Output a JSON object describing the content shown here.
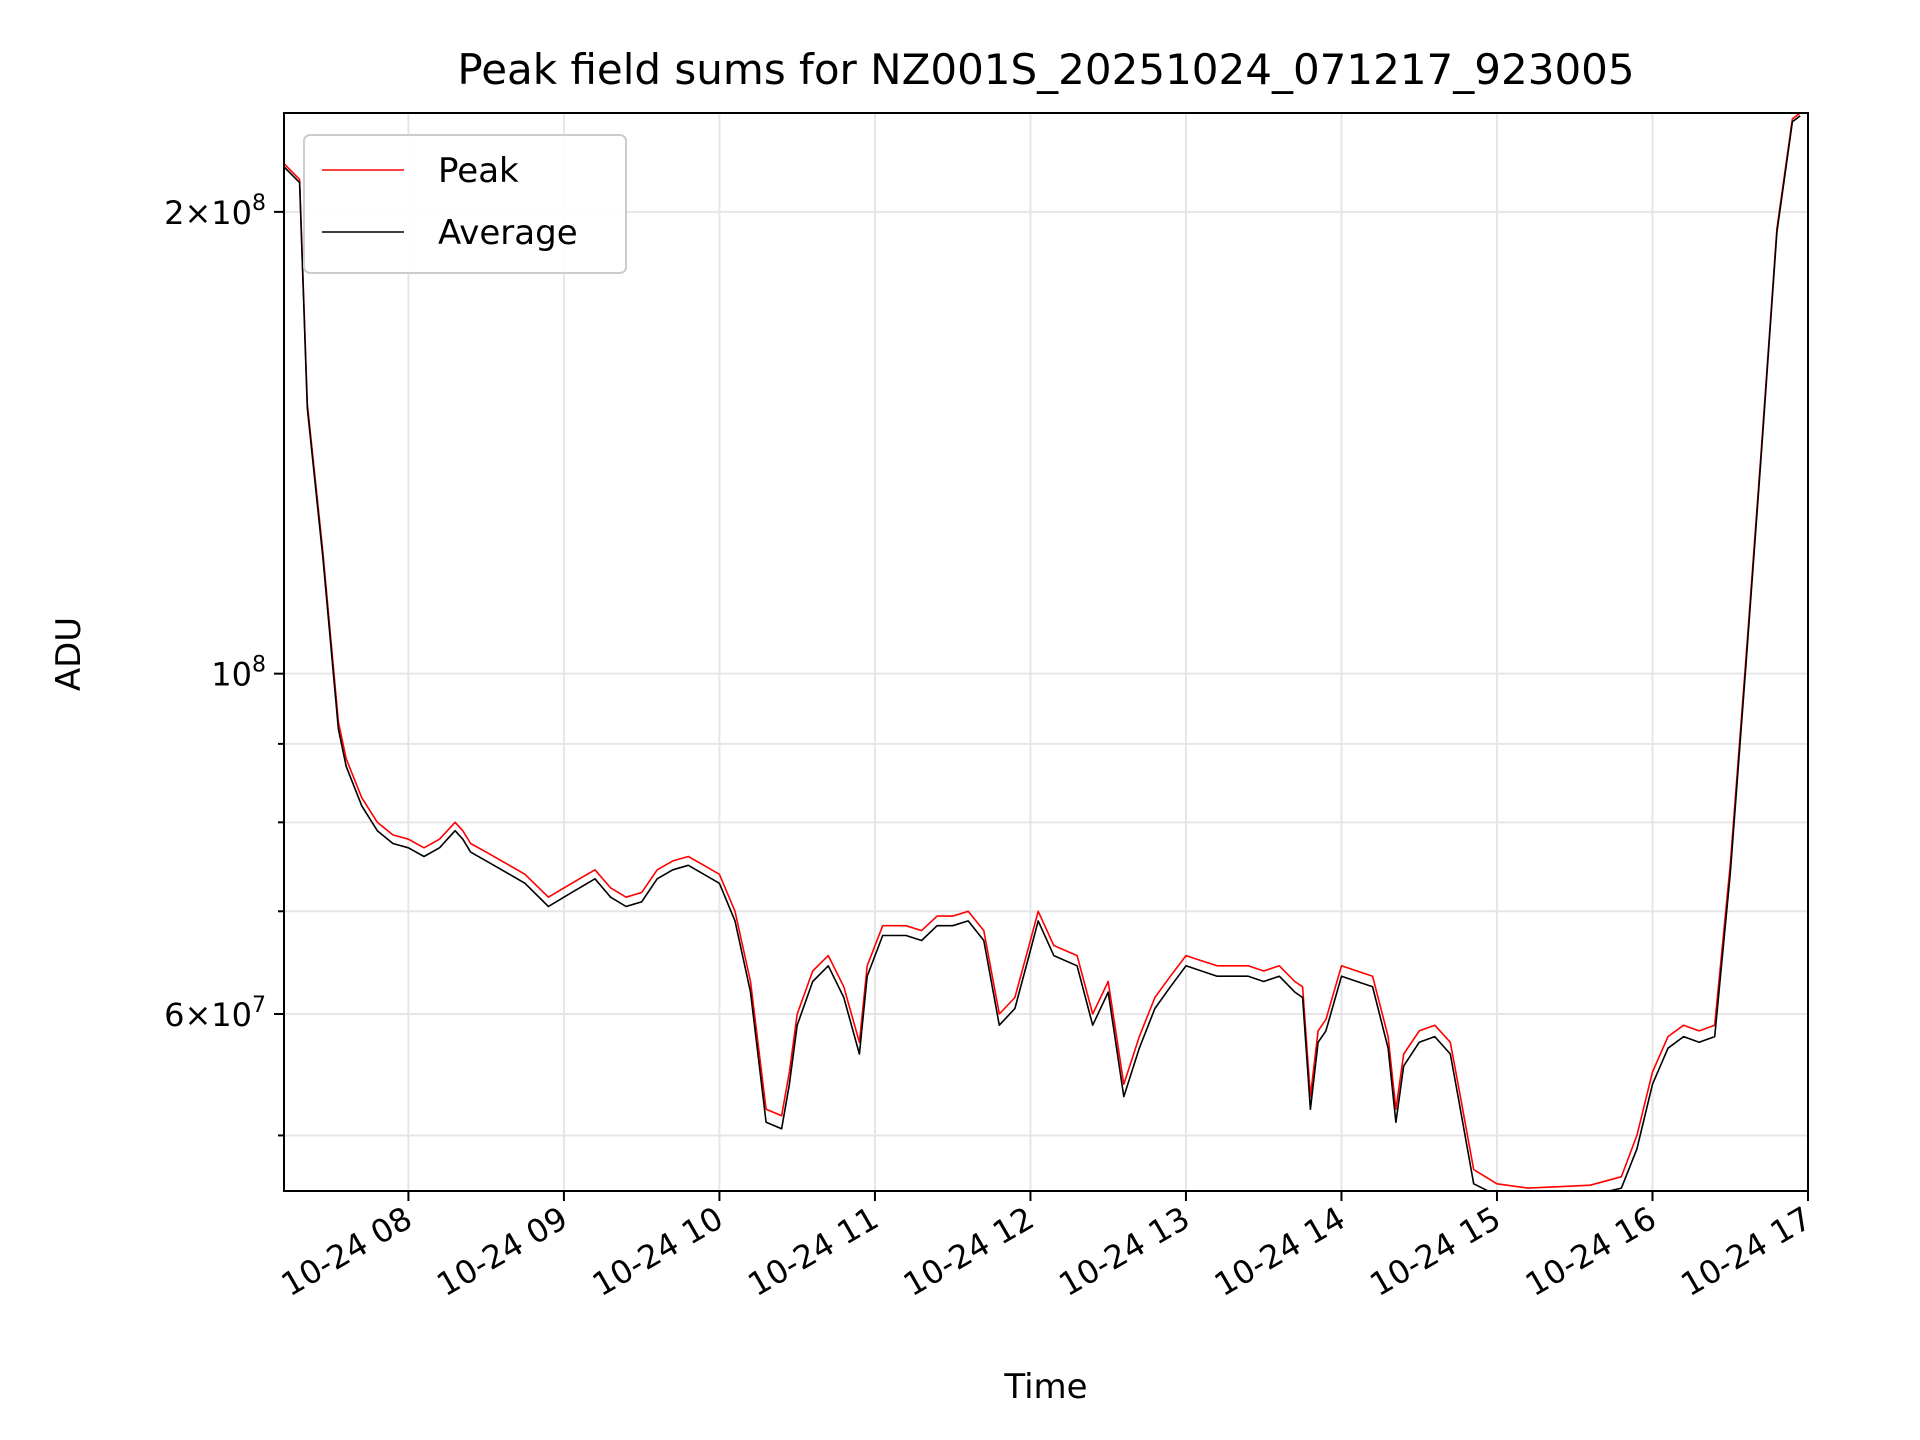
{
  "chart_data": {
    "type": "line",
    "title": "Peak field sums for NZ001S_20251024_071217_923005",
    "xlabel": "Time",
    "ylabel": "ADU",
    "x_unit": "hours of day 2025-10-24",
    "xlim": [
      7.2,
      17.0
    ],
    "ylim": [
      46000000,
      232000000
    ],
    "y_scale": "log",
    "grid": true,
    "legend_position": "upper-left",
    "x_ticks": [
      {
        "value": 8,
        "label": "10-24 08"
      },
      {
        "value": 9,
        "label": "10-24 09"
      },
      {
        "value": 10,
        "label": "10-24 10"
      },
      {
        "value": 11,
        "label": "10-24 11"
      },
      {
        "value": 12,
        "label": "10-24 12"
      },
      {
        "value": 13,
        "label": "10-24 13"
      },
      {
        "value": 14,
        "label": "10-24 14"
      },
      {
        "value": 15,
        "label": "10-24 15"
      },
      {
        "value": 16,
        "label": "10-24 16"
      },
      {
        "value": 17,
        "label": "10-24 17"
      }
    ],
    "y_ticks": [
      {
        "value": 60000000,
        "mantissa": "6",
        "exp": "7"
      },
      {
        "value": 100000000,
        "mantissa": "",
        "exp": "8"
      },
      {
        "value": 200000000,
        "mantissa": "2",
        "exp": "8"
      }
    ],
    "y_minor_ticks": [
      50000000,
      70000000,
      80000000,
      90000000
    ],
    "x": [
      7.2,
      7.3,
      7.35,
      7.45,
      7.55,
      7.6,
      7.7,
      7.8,
      7.9,
      8.0,
      8.1,
      8.2,
      8.3,
      8.35,
      8.4,
      8.5,
      8.6,
      8.75,
      8.9,
      9.0,
      9.1,
      9.2,
      9.3,
      9.4,
      9.5,
      9.6,
      9.7,
      9.8,
      9.9,
      10.0,
      10.1,
      10.2,
      10.3,
      10.4,
      10.45,
      10.5,
      10.6,
      10.7,
      10.8,
      10.9,
      10.95,
      11.05,
      11.2,
      11.3,
      11.4,
      11.5,
      11.6,
      11.7,
      11.8,
      11.9,
      12.0,
      12.05,
      12.15,
      12.3,
      12.4,
      12.5,
      12.6,
      12.7,
      12.8,
      12.9,
      13.0,
      13.1,
      13.2,
      13.3,
      13.4,
      13.5,
      13.6,
      13.7,
      13.75,
      13.8,
      13.85,
      13.9,
      14.0,
      14.1,
      14.2,
      14.3,
      14.35,
      14.4,
      14.5,
      14.6,
      14.7,
      14.75,
      14.85,
      15.0,
      15.2,
      15.4,
      15.6,
      15.8,
      15.9,
      16.0,
      16.1,
      16.2,
      16.3,
      16.4,
      16.5,
      16.6,
      16.7,
      16.8,
      16.9,
      16.95
    ],
    "series": [
      {
        "name": "Peak",
        "color": "#ff0000",
        "values": [
          215000000,
          210000000,
          150000000,
          120000000,
          93000000,
          88000000,
          83000000,
          80000000,
          78500000,
          78000000,
          77000000,
          78000000,
          80000000,
          79000000,
          77500000,
          76500000,
          75500000,
          74000000,
          71500000,
          72500000,
          73500000,
          74500000,
          72500000,
          71500000,
          72000000,
          74500000,
          75500000,
          76000000,
          75000000,
          74000000,
          70000000,
          63000000,
          52000000,
          51500000,
          55000000,
          60000000,
          64000000,
          65500000,
          62500000,
          57500000,
          64500000,
          68500000,
          68500000,
          68000000,
          69500000,
          69500000,
          70000000,
          68000000,
          60000000,
          61500000,
          67000000,
          70000000,
          66500000,
          65500000,
          60000000,
          63000000,
          54000000,
          58000000,
          61500000,
          63500000,
          65500000,
          65000000,
          64500000,
          64500000,
          64500000,
          64000000,
          64500000,
          63000000,
          62500000,
          53000000,
          58500000,
          59500000,
          64500000,
          64000000,
          63500000,
          58000000,
          52000000,
          56500000,
          58500000,
          59000000,
          57500000,
          54000000,
          47500000,
          46500000,
          46200000,
          46300000,
          46400000,
          47000000,
          50000000,
          55000000,
          58000000,
          59000000,
          58500000,
          59000000,
          75000000,
          102000000,
          140000000,
          195000000,
          230000000,
          232000000
        ]
      },
      {
        "name": "Average",
        "color": "#000000",
        "values": [
          214000000,
          209000000,
          149000000,
          119000000,
          92000000,
          87000000,
          82000000,
          79000000,
          77500000,
          77000000,
          76000000,
          77000000,
          79000000,
          78000000,
          76500000,
          75500000,
          74500000,
          73000000,
          70500000,
          71500000,
          72500000,
          73500000,
          71500000,
          70500000,
          71000000,
          73500000,
          74500000,
          75000000,
          74000000,
          73000000,
          69000000,
          62000000,
          51000000,
          50500000,
          54000000,
          59000000,
          63000000,
          64500000,
          61500000,
          56500000,
          63500000,
          67500000,
          67500000,
          67000000,
          68500000,
          68500000,
          69000000,
          67000000,
          59000000,
          60500000,
          66000000,
          69000000,
          65500000,
          64500000,
          59000000,
          62000000,
          53000000,
          57000000,
          60500000,
          62500000,
          64500000,
          64000000,
          63500000,
          63500000,
          63500000,
          63000000,
          63500000,
          62000000,
          61500000,
          52000000,
          57500000,
          58500000,
          63500000,
          63000000,
          62500000,
          57000000,
          51000000,
          55500000,
          57500000,
          58000000,
          56500000,
          53000000,
          46500000,
          45700000,
          45500000,
          45600000,
          45700000,
          46200000,
          49000000,
          54000000,
          57000000,
          58000000,
          57500000,
          58000000,
          74000000,
          101000000,
          139000000,
          194000000,
          229000000,
          231000000
        ]
      }
    ]
  }
}
